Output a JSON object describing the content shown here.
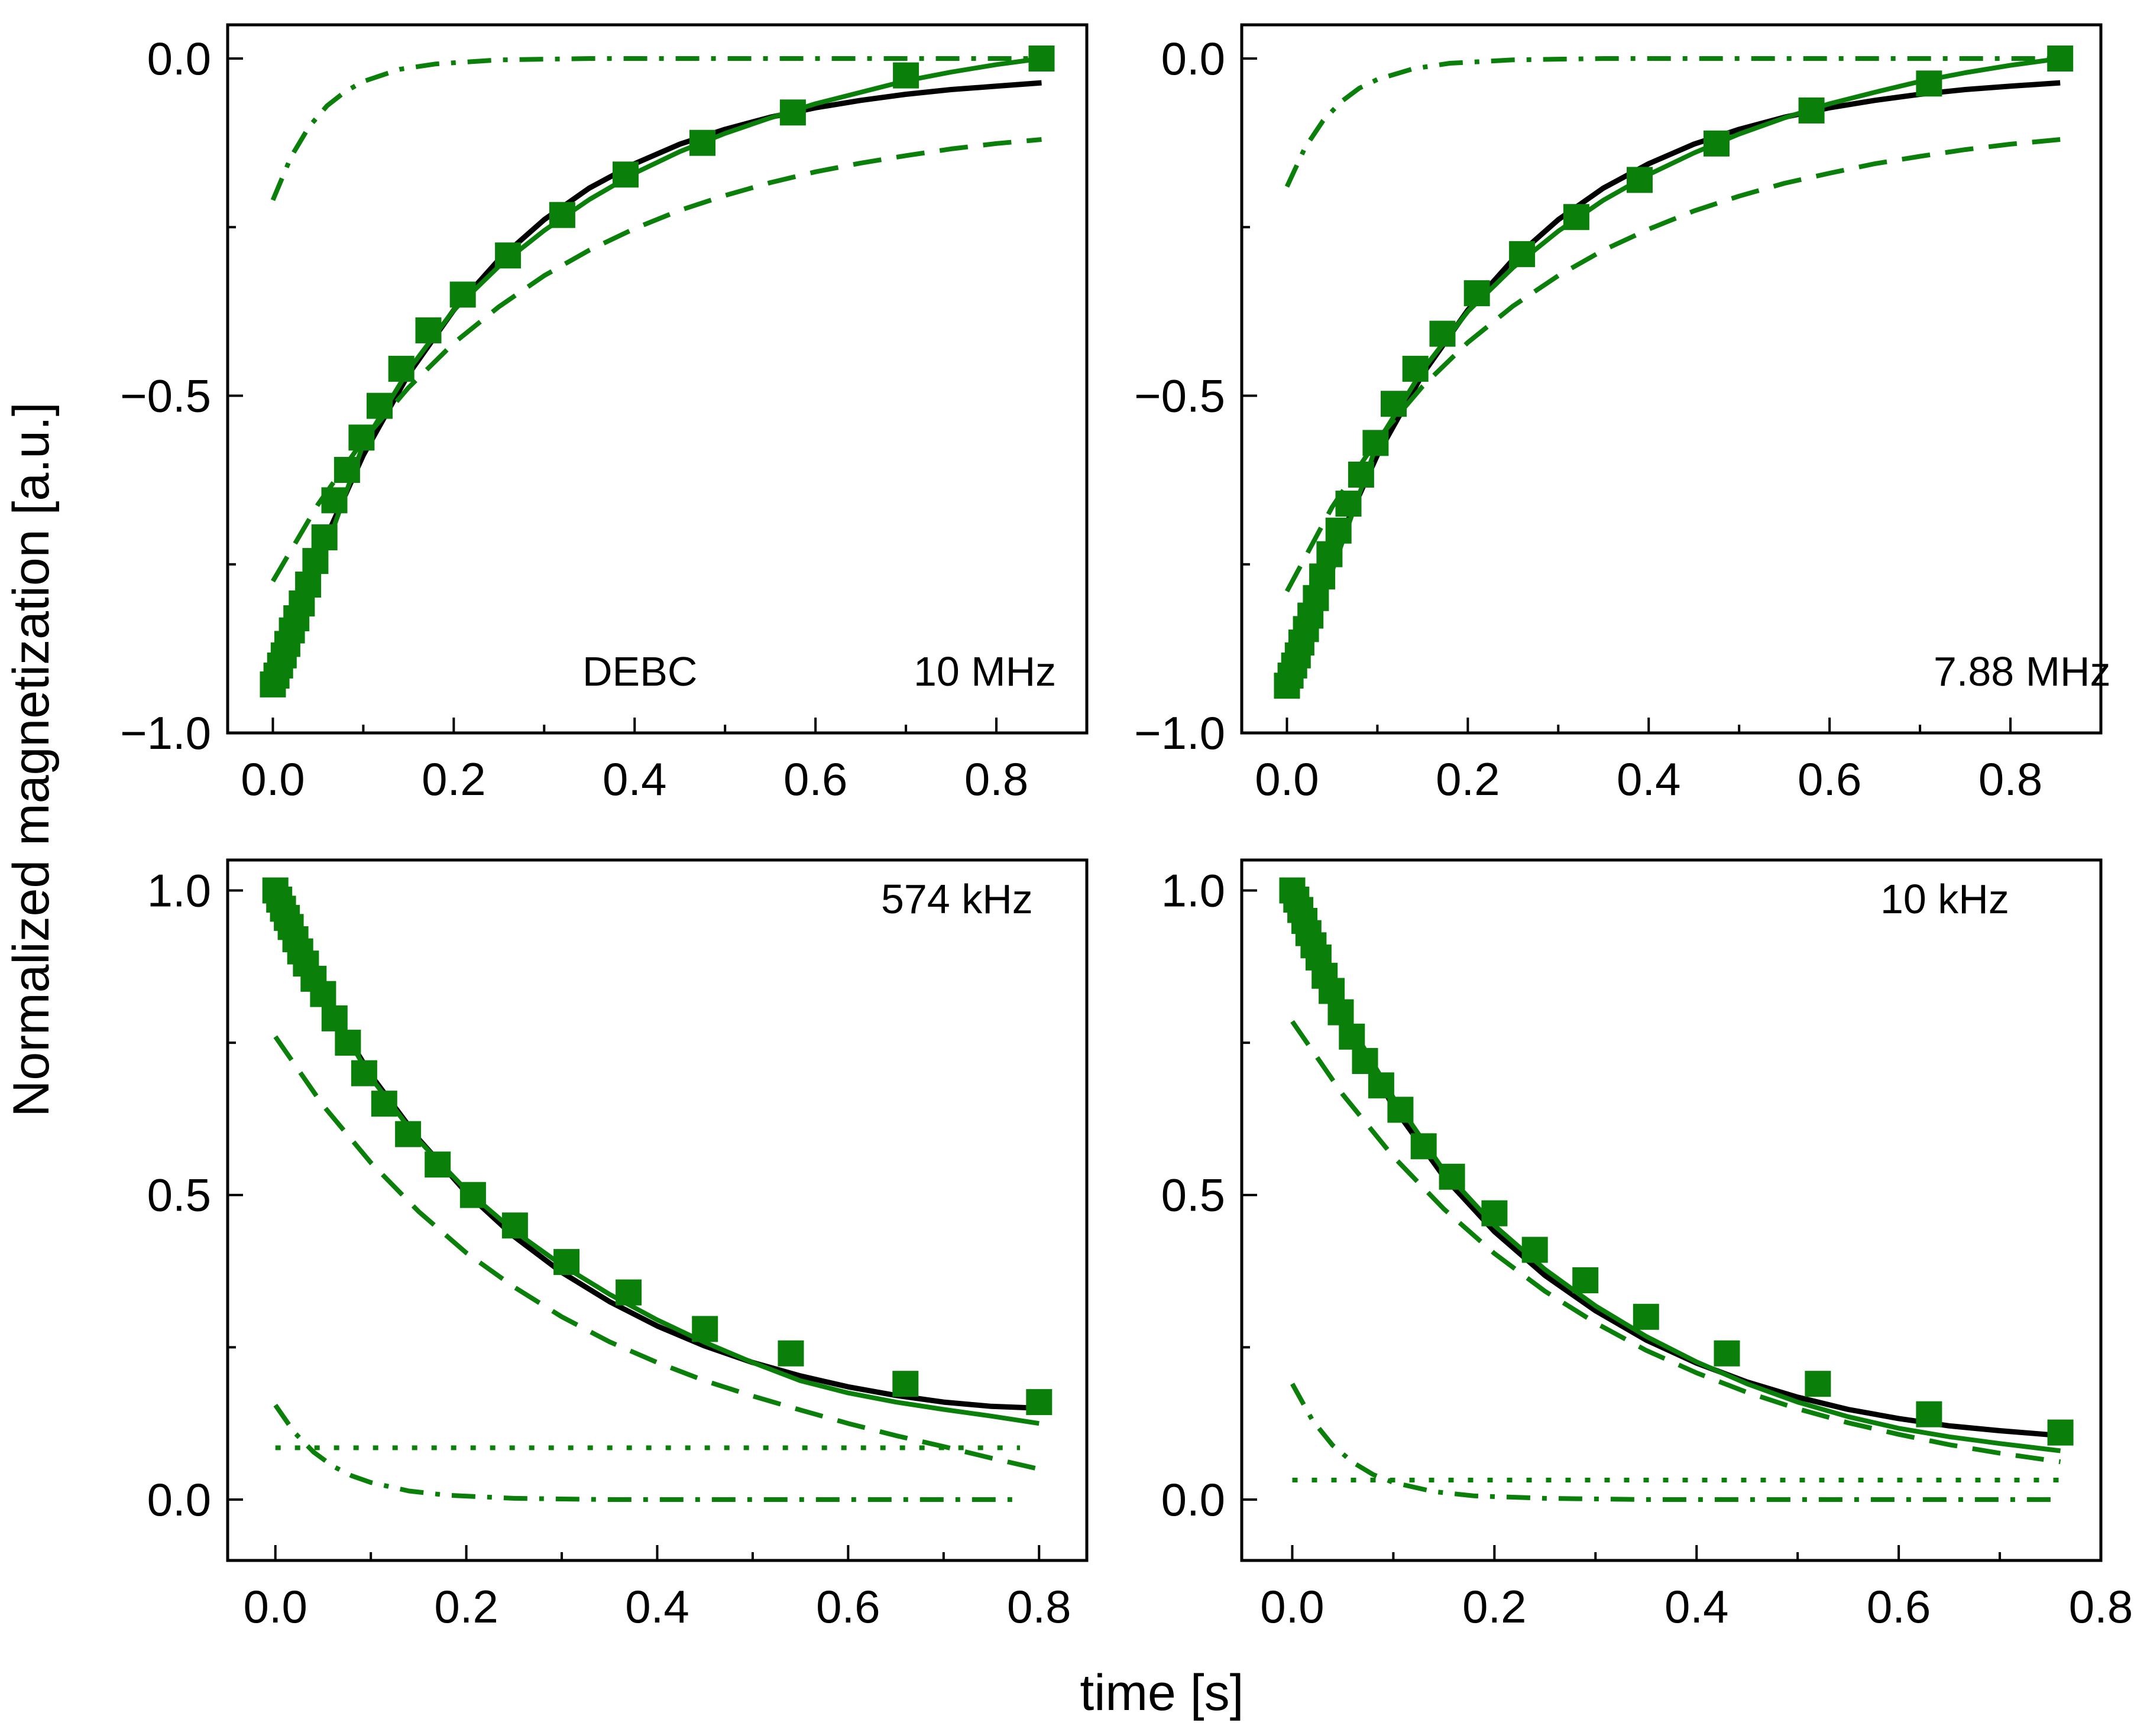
{
  "figure": {
    "ylabel": "Normalized magnetization [a.u.]",
    "xlabel": "time [s]"
  },
  "styles": {
    "green": "#0a800a",
    "black": "#000000"
  },
  "chart_data": [
    {
      "type": "line",
      "panel": "top-left",
      "annotations": [
        "DEBC",
        "10 MHz"
      ],
      "xlim": [
        -0.05,
        0.9
      ],
      "ylim": [
        -1.0,
        0.05
      ],
      "xticks": [
        0.0,
        0.2,
        0.4,
        0.6,
        0.8
      ],
      "xtick_labels": [
        "0.0",
        "0.2",
        "0.4",
        "0.6",
        "0.8"
      ],
      "yticks": [
        -1.0,
        -0.5,
        0.0
      ],
      "ytick_labels": [
        "−1.0",
        "−0.5",
        "0.0"
      ],
      "markers": {
        "x": [
          0.0,
          0.004,
          0.008,
          0.012,
          0.016,
          0.021,
          0.026,
          0.032,
          0.039,
          0.047,
          0.057,
          0.068,
          0.082,
          0.098,
          0.118,
          0.142,
          0.172,
          0.21,
          0.26,
          0.32,
          0.39,
          0.475,
          0.575,
          0.7,
          0.85
        ],
        "y": [
          -0.928,
          -0.915,
          -0.9,
          -0.885,
          -0.868,
          -0.848,
          -0.83,
          -0.808,
          -0.78,
          -0.745,
          -0.71,
          -0.655,
          -0.61,
          -0.562,
          -0.515,
          -0.46,
          -0.403,
          -0.35,
          -0.292,
          -0.232,
          -0.172,
          -0.125,
          -0.08,
          -0.025,
          0.0
        ]
      },
      "series": [
        {
          "name": "fit total",
          "style": "solid",
          "color": "black",
          "x": [
            0.005,
            0.03,
            0.06,
            0.1,
            0.15,
            0.2,
            0.25,
            0.3,
            0.35,
            0.4,
            0.45,
            0.5,
            0.55,
            0.6,
            0.65,
            0.7,
            0.75,
            0.8,
            0.85
          ],
          "y": [
            -0.915,
            -0.814,
            -0.707,
            -0.588,
            -0.468,
            -0.373,
            -0.298,
            -0.239,
            -0.192,
            -0.156,
            -0.127,
            -0.105,
            -0.087,
            -0.073,
            -0.062,
            -0.053,
            -0.046,
            -0.041,
            -0.036
          ]
        },
        {
          "name": "fit connecting",
          "style": "solid",
          "color": "green",
          "x": [
            0.0,
            0.05,
            0.1,
            0.15,
            0.2,
            0.25,
            0.3,
            0.35,
            0.4,
            0.45,
            0.5,
            0.55,
            0.6,
            0.65,
            0.7,
            0.75,
            0.8,
            0.85
          ],
          "y": [
            -0.93,
            -0.76,
            -0.572,
            -0.462,
            -0.373,
            -0.308,
            -0.255,
            -0.209,
            -0.17,
            -0.138,
            -0.111,
            -0.088,
            -0.067,
            -0.05,
            -0.033,
            -0.02,
            -0.009,
            0.0
          ]
        },
        {
          "name": "component 1",
          "style": "dashed",
          "color": "green",
          "x": [
            0.0,
            0.05,
            0.1,
            0.15,
            0.2,
            0.25,
            0.3,
            0.35,
            0.4,
            0.45,
            0.5,
            0.55,
            0.6,
            0.65,
            0.7,
            0.75,
            0.8,
            0.85
          ],
          "y": [
            -0.775,
            -0.661,
            -0.566,
            -0.488,
            -0.422,
            -0.368,
            -0.322,
            -0.284,
            -0.252,
            -0.225,
            -0.203,
            -0.184,
            -0.168,
            -0.155,
            -0.144,
            -0.134,
            -0.126,
            -0.12
          ]
        },
        {
          "name": "component 2",
          "style": "dashdot",
          "color": "green",
          "x": [
            0.0,
            0.02,
            0.04,
            0.06,
            0.08,
            0.1,
            0.14,
            0.18,
            0.25,
            0.35,
            0.5,
            0.7,
            0.85
          ],
          "y": [
            -0.21,
            -0.146,
            -0.101,
            -0.07,
            -0.049,
            -0.034,
            -0.016,
            -0.008,
            -0.002,
            0.0,
            0.0,
            0.0,
            0.0
          ]
        }
      ]
    },
    {
      "type": "line",
      "panel": "top-right",
      "annotations": [
        "7.88 MHz"
      ],
      "xlim": [
        -0.05,
        0.9
      ],
      "ylim": [
        -1.0,
        0.05
      ],
      "xticks": [
        0.0,
        0.2,
        0.4,
        0.6,
        0.8
      ],
      "xtick_labels": [
        "0.0",
        "0.2",
        "0.4",
        "0.6",
        "0.8"
      ],
      "yticks": [
        -1.0,
        -0.5,
        0.0
      ],
      "ytick_labels": [
        "−1.0",
        "−0.5",
        "0.0"
      ],
      "markers": {
        "x": [
          0.0,
          0.004,
          0.008,
          0.012,
          0.016,
          0.021,
          0.026,
          0.032,
          0.039,
          0.047,
          0.057,
          0.068,
          0.082,
          0.098,
          0.118,
          0.142,
          0.172,
          0.21,
          0.26,
          0.32,
          0.39,
          0.475,
          0.58,
          0.71,
          0.855
        ],
        "y": [
          -0.93,
          -0.915,
          -0.9,
          -0.885,
          -0.866,
          -0.846,
          -0.826,
          -0.8,
          -0.768,
          -0.735,
          -0.7,
          -0.66,
          -0.617,
          -0.57,
          -0.512,
          -0.46,
          -0.408,
          -0.348,
          -0.29,
          -0.235,
          -0.18,
          -0.126,
          -0.077,
          -0.037,
          0.0
        ]
      },
      "series": [
        {
          "name": "fit total",
          "style": "solid",
          "color": "black",
          "x": [
            0.005,
            0.03,
            0.06,
            0.1,
            0.15,
            0.2,
            0.25,
            0.3,
            0.35,
            0.4,
            0.45,
            0.5,
            0.55,
            0.6,
            0.65,
            0.7,
            0.75,
            0.8,
            0.855
          ],
          "y": [
            -0.915,
            -0.814,
            -0.707,
            -0.588,
            -0.468,
            -0.373,
            -0.298,
            -0.239,
            -0.192,
            -0.156,
            -0.127,
            -0.105,
            -0.087,
            -0.073,
            -0.062,
            -0.053,
            -0.046,
            -0.041,
            -0.036
          ]
        },
        {
          "name": "fit connecting",
          "style": "solid",
          "color": "green",
          "x": [
            0.0,
            0.05,
            0.1,
            0.15,
            0.2,
            0.25,
            0.3,
            0.35,
            0.4,
            0.45,
            0.5,
            0.55,
            0.6,
            0.65,
            0.7,
            0.75,
            0.8,
            0.855
          ],
          "y": [
            -0.93,
            -0.76,
            -0.57,
            -0.462,
            -0.375,
            -0.31,
            -0.256,
            -0.21,
            -0.172,
            -0.14,
            -0.112,
            -0.088,
            -0.067,
            -0.05,
            -0.034,
            -0.021,
            -0.01,
            0.0
          ]
        },
        {
          "name": "component 1",
          "style": "dashed",
          "color": "green",
          "x": [
            0.0,
            0.05,
            0.1,
            0.15,
            0.2,
            0.25,
            0.3,
            0.35,
            0.4,
            0.45,
            0.5,
            0.55,
            0.6,
            0.65,
            0.7,
            0.75,
            0.8,
            0.855
          ],
          "y": [
            -0.79,
            -0.665,
            -0.565,
            -0.486,
            -0.421,
            -0.367,
            -0.322,
            -0.284,
            -0.253,
            -0.226,
            -0.204,
            -0.185,
            -0.17,
            -0.156,
            -0.145,
            -0.135,
            -0.127,
            -0.12
          ]
        },
        {
          "name": "component 2",
          "style": "dashdot",
          "color": "green",
          "x": [
            0.0,
            0.02,
            0.04,
            0.06,
            0.08,
            0.1,
            0.14,
            0.18,
            0.25,
            0.35,
            0.5,
            0.7,
            0.855
          ],
          "y": [
            -0.19,
            -0.132,
            -0.092,
            -0.064,
            -0.044,
            -0.031,
            -0.015,
            -0.007,
            -0.002,
            0.0,
            0.0,
            0.0,
            0.0
          ]
        }
      ]
    },
    {
      "type": "line",
      "panel": "bottom-left",
      "annotations": [
        "574 kHz"
      ],
      "xlim": [
        -0.05,
        0.85
      ],
      "ylim": [
        -0.1,
        1.05
      ],
      "xticks": [
        0.0,
        0.2,
        0.4,
        0.6,
        0.8
      ],
      "xtick_labels": [
        "0.0",
        "0.2",
        "0.4",
        "0.6",
        "0.8"
      ],
      "yticks": [
        0.0,
        0.5,
        1.0
      ],
      "ytick_labels": [
        "0.0",
        "0.5",
        "1.0"
      ],
      "markers": {
        "x": [
          0.0,
          0.004,
          0.008,
          0.012,
          0.016,
          0.021,
          0.026,
          0.032,
          0.04,
          0.05,
          0.062,
          0.076,
          0.093,
          0.114,
          0.139,
          0.17,
          0.207,
          0.251,
          0.305,
          0.37,
          0.45,
          0.54,
          0.66,
          0.8
        ],
        "y": [
          1.0,
          0.985,
          0.97,
          0.955,
          0.94,
          0.92,
          0.9,
          0.88,
          0.855,
          0.83,
          0.79,
          0.75,
          0.7,
          0.65,
          0.6,
          0.55,
          0.5,
          0.45,
          0.39,
          0.34,
          0.28,
          0.24,
          0.19,
          0.16
        ]
      },
      "series": [
        {
          "name": "fit total",
          "style": "solid",
          "color": "black",
          "x": [
            0.0,
            0.05,
            0.1,
            0.15,
            0.2,
            0.25,
            0.3,
            0.35,
            0.4,
            0.45,
            0.5,
            0.55,
            0.6,
            0.65,
            0.7,
            0.75,
            0.8
          ],
          "y": [
            0.98,
            0.825,
            0.697,
            0.592,
            0.504,
            0.432,
            0.373,
            0.325,
            0.285,
            0.252,
            0.225,
            0.203,
            0.185,
            0.171,
            0.16,
            0.153,
            0.15
          ]
        },
        {
          "name": "fit connecting",
          "style": "solid",
          "color": "green",
          "x": [
            0.0,
            0.05,
            0.1,
            0.15,
            0.2,
            0.25,
            0.3,
            0.35,
            0.4,
            0.45,
            0.5,
            0.55,
            0.6,
            0.65,
            0.7,
            0.75,
            0.8
          ],
          "y": [
            1.0,
            0.825,
            0.693,
            0.59,
            0.508,
            0.441,
            0.385,
            0.337,
            0.295,
            0.258,
            0.225,
            0.195,
            0.175,
            0.16,
            0.148,
            0.137,
            0.125
          ]
        },
        {
          "name": "component 1",
          "style": "dashed",
          "color": "green",
          "x": [
            0.0,
            0.05,
            0.1,
            0.15,
            0.2,
            0.25,
            0.3,
            0.35,
            0.4,
            0.45,
            0.5,
            0.55,
            0.6,
            0.65,
            0.7,
            0.75,
            0.8
          ],
          "y": [
            0.76,
            0.647,
            0.553,
            0.473,
            0.405,
            0.349,
            0.3,
            0.259,
            0.225,
            0.195,
            0.17,
            0.147,
            0.125,
            0.105,
            0.087,
            0.068,
            0.05
          ]
        },
        {
          "name": "component 2",
          "style": "dashdot",
          "color": "green",
          "x": [
            0.0,
            0.02,
            0.04,
            0.06,
            0.08,
            0.1,
            0.14,
            0.18,
            0.25,
            0.35,
            0.5,
            0.65,
            0.78
          ],
          "y": [
            0.155,
            0.11,
            0.078,
            0.055,
            0.039,
            0.028,
            0.014,
            0.007,
            0.002,
            0.0,
            0.0,
            0.0,
            0.0
          ]
        },
        {
          "name": "offset",
          "style": "dotted",
          "color": "green",
          "x": [
            0.0,
            0.78
          ],
          "y": [
            0.085,
            0.085
          ]
        }
      ]
    },
    {
      "type": "line",
      "panel": "bottom-right",
      "annotations": [
        "10 kHz"
      ],
      "xlim": [
        -0.05,
        0.8
      ],
      "ylim": [
        -0.1,
        1.05
      ],
      "xticks": [
        0.0,
        0.2,
        0.4,
        0.6,
        0.8
      ],
      "xtick_labels": [
        "0.0",
        "0.2",
        "0.4",
        "0.6",
        "0.8"
      ],
      "yticks": [
        0.0,
        0.5,
        1.0
      ],
      "ytick_labels": [
        "0.0",
        "0.5",
        "1.0"
      ],
      "markers": {
        "x": [
          0.0,
          0.004,
          0.008,
          0.012,
          0.016,
          0.021,
          0.026,
          0.032,
          0.039,
          0.048,
          0.059,
          0.072,
          0.088,
          0.107,
          0.13,
          0.158,
          0.2,
          0.24,
          0.29,
          0.35,
          0.43,
          0.52,
          0.63,
          0.76
        ],
        "y": [
          1.0,
          0.985,
          0.968,
          0.95,
          0.93,
          0.91,
          0.89,
          0.86,
          0.835,
          0.8,
          0.76,
          0.72,
          0.68,
          0.64,
          0.58,
          0.53,
          0.47,
          0.41,
          0.36,
          0.3,
          0.24,
          0.19,
          0.14,
          0.11
        ]
      },
      "series": [
        {
          "name": "fit total",
          "style": "solid",
          "color": "black",
          "x": [
            0.0,
            0.05,
            0.1,
            0.15,
            0.2,
            0.25,
            0.3,
            0.35,
            0.4,
            0.45,
            0.5,
            0.55,
            0.6,
            0.65,
            0.7,
            0.76
          ],
          "y": [
            0.985,
            0.794,
            0.645,
            0.53,
            0.44,
            0.368,
            0.31,
            0.262,
            0.224,
            0.193,
            0.168,
            0.148,
            0.133,
            0.121,
            0.113,
            0.105
          ]
        },
        {
          "name": "fit connecting",
          "style": "solid",
          "color": "green",
          "x": [
            0.0,
            0.05,
            0.1,
            0.15,
            0.2,
            0.25,
            0.3,
            0.35,
            0.4,
            0.45,
            0.5,
            0.55,
            0.6,
            0.65,
            0.7,
            0.76
          ],
          "y": [
            1.0,
            0.8,
            0.66,
            0.54,
            0.45,
            0.378,
            0.318,
            0.268,
            0.226,
            0.19,
            0.16,
            0.136,
            0.117,
            0.103,
            0.092,
            0.08
          ]
        },
        {
          "name": "component 1",
          "style": "dashed",
          "color": "green",
          "x": [
            0.0,
            0.05,
            0.1,
            0.15,
            0.2,
            0.25,
            0.3,
            0.35,
            0.4,
            0.45,
            0.5,
            0.55,
            0.6,
            0.65,
            0.7,
            0.76
          ],
          "y": [
            0.785,
            0.665,
            0.563,
            0.477,
            0.404,
            0.342,
            0.29,
            0.245,
            0.208,
            0.176,
            0.149,
            0.126,
            0.107,
            0.09,
            0.076,
            0.062
          ]
        },
        {
          "name": "component 2",
          "style": "dashdot",
          "color": "green",
          "x": [
            0.0,
            0.02,
            0.04,
            0.06,
            0.08,
            0.1,
            0.14,
            0.18,
            0.25,
            0.35,
            0.5,
            0.65,
            0.76
          ],
          "y": [
            0.19,
            0.13,
            0.089,
            0.061,
            0.041,
            0.028,
            0.013,
            0.006,
            0.002,
            0.0,
            0.0,
            0.0,
            0.0
          ]
        },
        {
          "name": "offset",
          "style": "dotted",
          "color": "green",
          "x": [
            0.0,
            0.76
          ],
          "y": [
            0.032,
            0.032
          ]
        }
      ]
    }
  ]
}
